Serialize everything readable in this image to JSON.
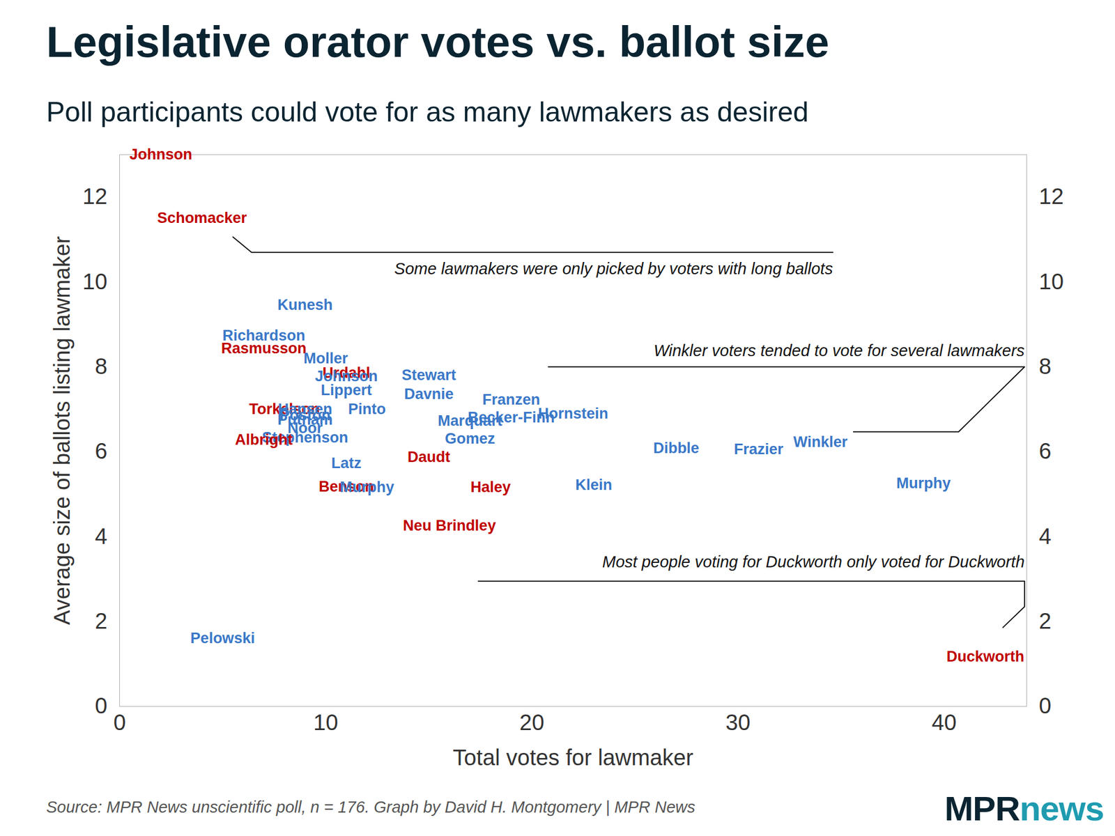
{
  "chart_data": {
    "type": "scatter",
    "title": "Legislative orator votes vs. ballot size",
    "subtitle": "Poll participants could vote for as many lawmakers as desired",
    "x_label": "Total votes for lawmaker",
    "y_label": "Average size of ballots listing lawmaker",
    "caption": "Source: MPR News unscientific poll, n = 176. Graph by David H. Montgomery | MPR News",
    "logo": [
      "MPR",
      "news"
    ],
    "annotations": [
      "Some lawmakers were only picked by voters with long ballots",
      "Winkler voters tended to vote for several lawmakers",
      "Most people voting for Duckworth only voted for Duckworth"
    ],
    "labels": [
      "Johnson",
      "Schomacker",
      "Kunesh",
      "Richardson",
      "Rasmusson",
      "Moller",
      "Urdahl",
      "Johnson",
      "Stewart",
      "Lippert",
      "Davnie",
      "Franzen",
      "Torkelson",
      "Hansen",
      "Pinto",
      "Poston",
      "Putnam",
      "Noor",
      "Stephenson",
      "Albright",
      "Hornstein",
      "Becker-Finn",
      "Marquart",
      "Gomez",
      "Latz",
      "Daudt",
      "Dibble",
      "Frazier",
      "Winkler",
      "Murphy",
      "Klein",
      "Haley",
      "Benson",
      "Murphy",
      "Neu Brindley",
      "Pelowski",
      "Duckworth"
    ],
    "x": [
      2,
      4,
      9,
      7,
      7,
      10,
      11,
      11,
      15,
      11,
      15,
      19,
      8,
      9,
      12,
      9,
      9,
      9,
      9,
      7,
      22,
      19,
      17,
      17,
      11,
      15,
      27,
      31,
      34,
      39,
      23,
      18,
      11,
      12,
      16,
      5,
      42
    ],
    "values": [
      13.0,
      11.5,
      9.45,
      8.73,
      8.43,
      8.2,
      7.85,
      7.78,
      7.8,
      7.45,
      7.35,
      7.22,
      7.0,
      7.0,
      7.0,
      6.85,
      6.75,
      6.55,
      6.33,
      6.28,
      6.9,
      6.8,
      6.72,
      6.3,
      5.73,
      5.87,
      6.08,
      6.05,
      6.23,
      5.26,
      5.21,
      5.16,
      5.18,
      5.16,
      4.26,
      1.6,
      1.17
    ],
    "colors": [
      "#c00000",
      "#c00000",
      "#3a78c8",
      "#3a78c8",
      "#c00000",
      "#3a78c8",
      "#c00000",
      "#3a78c8",
      "#3a78c8",
      "#3a78c8",
      "#3a78c8",
      "#3a78c8",
      "#c00000",
      "#3a78c8",
      "#3a78c8",
      "#3a78c8",
      "#3a78c8",
      "#3a78c8",
      "#3a78c8",
      "#c00000",
      "#3a78c8",
      "#3a78c8",
      "#3a78c8",
      "#3a78c8",
      "#3a78c8",
      "#c00000",
      "#3a78c8",
      "#3a78c8",
      "#3a78c8",
      "#3a78c8",
      "#3a78c8",
      "#c00000",
      "#c00000",
      "#3a78c8",
      "#c00000",
      "#3a78c8",
      "#c00000"
    ],
    "xlim": [
      0,
      44
    ],
    "ylim": [
      0,
      13
    ],
    "xticks": [
      0,
      10,
      20,
      30,
      40
    ],
    "yticks": [
      0,
      2,
      4,
      6,
      8,
      10,
      12
    ],
    "grid": false
  }
}
